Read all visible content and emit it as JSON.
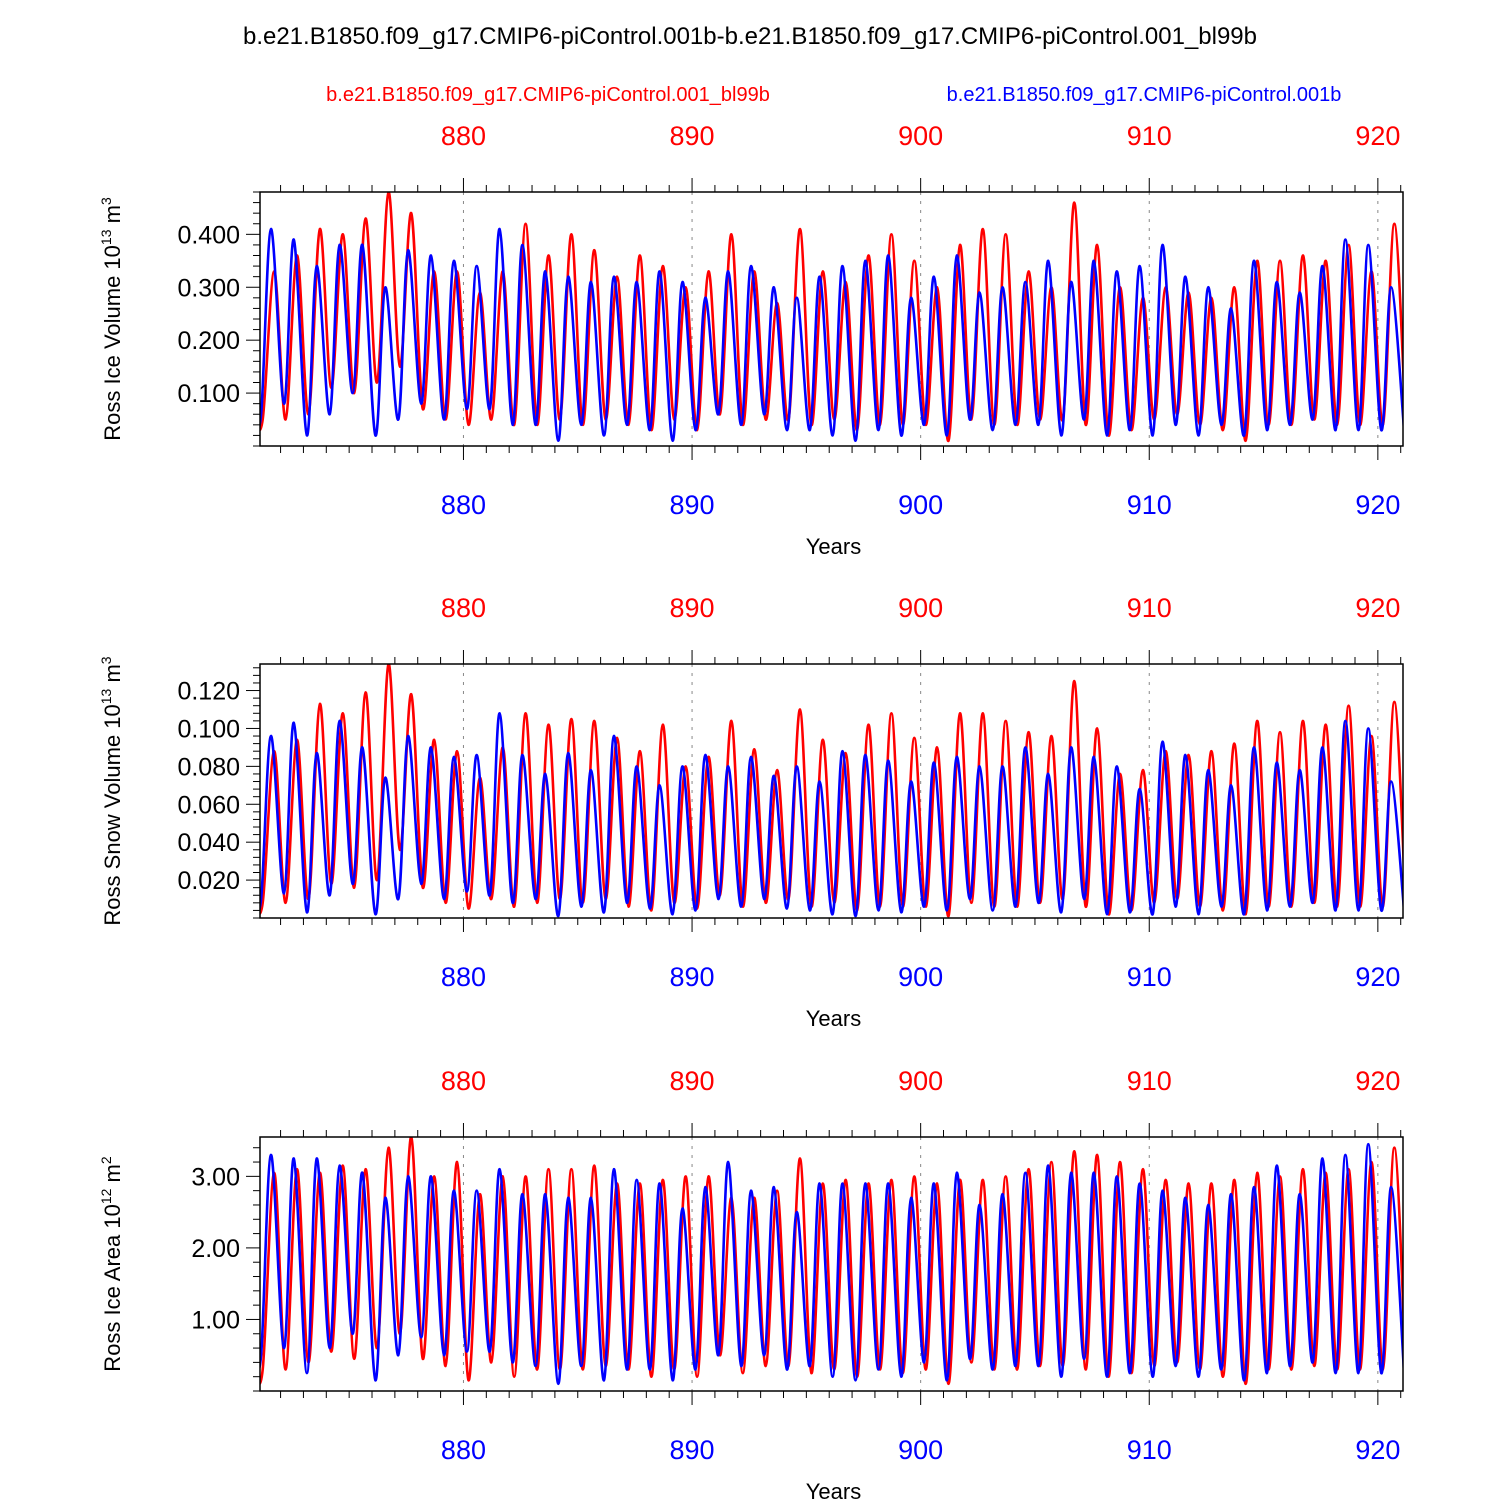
{
  "title": "b.e21.B1850.f09_g17.CMIP6-piControl.001b-b.e21.B1850.f09_g17.CMIP6-piControl.001_bl99b",
  "legend": {
    "red": "b.e21.B1850.f09_g17.CMIP6-piControl.001_bl99b",
    "blue": "b.e21.B1850.f09_g17.CMIP6-piControl.001b"
  },
  "colors": {
    "series_a": "#ff0000",
    "series_b": "#0000ff",
    "axis": "#000000",
    "grid": "#888888"
  },
  "chart_data": [
    {
      "type": "line",
      "title": "",
      "ylabel_main": "Ross Ice Volume 10",
      "ylabel_exp": "13",
      "ylabel_unit": " m",
      "ylabel_unit_exp": "3",
      "xlabel": "Years",
      "xlim": [
        871.1,
        921.1
      ],
      "ylim": [
        0.0,
        0.48
      ],
      "yticks": [
        0.1,
        0.2,
        0.3,
        0.4
      ],
      "ytick_labels": [
        "0.100",
        "0.200",
        "0.300",
        "0.400"
      ],
      "xticks": [
        880,
        890,
        900,
        910,
        920
      ],
      "xtick_labels": [
        "880",
        "890",
        "900",
        "910",
        "920"
      ],
      "grid_x": true,
      "series": [
        {
          "name": "b.e21.B1850.f09_g17.CMIP6-piControl.001_bl99b",
          "color": "#ff0000",
          "max": [
            0.33,
            0.36,
            0.41,
            0.4,
            0.43,
            0.48,
            0.44,
            0.33,
            0.33,
            0.29,
            0.33,
            0.42,
            0.36,
            0.4,
            0.37,
            0.32,
            0.36,
            0.34,
            0.3,
            0.33,
            0.4,
            0.33,
            0.27,
            0.41,
            0.33,
            0.31,
            0.36,
            0.4,
            0.35,
            0.3,
            0.38,
            0.41,
            0.4,
            0.33,
            0.3,
            0.46,
            0.38,
            0.3,
            0.28,
            0.3,
            0.29,
            0.28,
            0.3,
            0.35,
            0.35,
            0.36,
            0.35,
            0.38,
            0.33,
            0.42
          ],
          "min": [
            0.05,
            0.05,
            0.06,
            0.11,
            0.1,
            0.12,
            0.15,
            0.07,
            0.05,
            0.04,
            0.05,
            0.04,
            0.04,
            0.05,
            0.04,
            0.05,
            0.04,
            0.03,
            0.05,
            0.03,
            0.06,
            0.04,
            0.05,
            0.05,
            0.04,
            0.05,
            0.03,
            0.04,
            0.04,
            0.04,
            0.01,
            0.05,
            0.04,
            0.04,
            0.05,
            0.05,
            0.04,
            0.02,
            0.03,
            0.05,
            0.06,
            0.04,
            0.03,
            0.01,
            0.04,
            0.04,
            0.05,
            0.04,
            0.04,
            0.04
          ]
        },
        {
          "name": "b.e21.B1850.f09_g17.CMIP6-piControl.001b",
          "color": "#0000ff",
          "max": [
            0.41,
            0.39,
            0.34,
            0.38,
            0.38,
            0.3,
            0.37,
            0.36,
            0.35,
            0.34,
            0.41,
            0.38,
            0.33,
            0.32,
            0.31,
            0.32,
            0.31,
            0.33,
            0.31,
            0.28,
            0.33,
            0.34,
            0.3,
            0.28,
            0.32,
            0.34,
            0.35,
            0.36,
            0.28,
            0.32,
            0.36,
            0.29,
            0.3,
            0.31,
            0.35,
            0.31,
            0.35,
            0.33,
            0.34,
            0.38,
            0.32,
            0.3,
            0.26,
            0.35,
            0.31,
            0.29,
            0.34,
            0.39,
            0.38,
            0.3
          ],
          "min": [
            0.06,
            0.08,
            0.02,
            0.06,
            0.1,
            0.02,
            0.05,
            0.08,
            0.05,
            0.07,
            0.07,
            0.04,
            0.04,
            0.01,
            0.04,
            0.02,
            0.04,
            0.03,
            0.01,
            0.03,
            0.06,
            0.04,
            0.06,
            0.03,
            0.03,
            0.02,
            0.01,
            0.03,
            0.02,
            0.04,
            0.02,
            0.05,
            0.03,
            0.04,
            0.04,
            0.02,
            0.05,
            0.02,
            0.03,
            0.02,
            0.04,
            0.02,
            0.04,
            0.02,
            0.03,
            0.04,
            0.05,
            0.03,
            0.03,
            0.03
          ]
        }
      ]
    },
    {
      "type": "line",
      "title": "",
      "ylabel_main": "Ross Snow Volume 10",
      "ylabel_exp": "13",
      "ylabel_unit": " m",
      "ylabel_unit_exp": "3",
      "xlabel": "Years",
      "xlim": [
        871.1,
        921.1
      ],
      "ylim": [
        0.0,
        0.134
      ],
      "yticks": [
        0.02,
        0.04,
        0.06,
        0.08,
        0.1,
        0.12
      ],
      "ytick_labels": [
        "0.020",
        "0.040",
        "0.060",
        "0.080",
        "0.100",
        "0.120"
      ],
      "xticks": [
        880,
        890,
        900,
        910,
        920
      ],
      "xtick_labels": [
        "880",
        "890",
        "900",
        "910",
        "920"
      ],
      "grid_x": true,
      "series": [
        {
          "name": "b.e21.B1850.f09_g17.CMIP6-piControl.001_bl99b",
          "color": "#ff0000",
          "max": [
            0.088,
            0.094,
            0.113,
            0.108,
            0.119,
            0.134,
            0.118,
            0.094,
            0.088,
            0.074,
            0.09,
            0.108,
            0.102,
            0.105,
            0.104,
            0.095,
            0.088,
            0.102,
            0.08,
            0.085,
            0.104,
            0.089,
            0.078,
            0.11,
            0.094,
            0.087,
            0.102,
            0.108,
            0.095,
            0.09,
            0.108,
            0.108,
            0.104,
            0.098,
            0.096,
            0.125,
            0.1,
            0.076,
            0.078,
            0.088,
            0.086,
            0.088,
            0.092,
            0.104,
            0.098,
            0.104,
            0.102,
            0.112,
            0.096,
            0.114
          ],
          "min": [
            0.008,
            0.008,
            0.01,
            0.018,
            0.016,
            0.02,
            0.036,
            0.016,
            0.008,
            0.005,
            0.01,
            0.006,
            0.008,
            0.01,
            0.008,
            0.01,
            0.006,
            0.004,
            0.008,
            0.005,
            0.012,
            0.006,
            0.008,
            0.01,
            0.006,
            0.008,
            0.004,
            0.006,
            0.006,
            0.006,
            0.001,
            0.008,
            0.006,
            0.006,
            0.008,
            0.01,
            0.006,
            0.002,
            0.004,
            0.008,
            0.01,
            0.006,
            0.004,
            0.002,
            0.006,
            0.006,
            0.008,
            0.006,
            0.006,
            0.006
          ]
        },
        {
          "name": "b.e21.B1850.f09_g17.CMIP6-piControl.001b",
          "color": "#0000ff",
          "max": [
            0.096,
            0.103,
            0.087,
            0.104,
            0.09,
            0.074,
            0.096,
            0.09,
            0.085,
            0.086,
            0.108,
            0.086,
            0.076,
            0.087,
            0.078,
            0.096,
            0.08,
            0.07,
            0.08,
            0.086,
            0.08,
            0.085,
            0.075,
            0.08,
            0.072,
            0.088,
            0.086,
            0.083,
            0.072,
            0.082,
            0.085,
            0.08,
            0.08,
            0.09,
            0.076,
            0.09,
            0.085,
            0.08,
            0.068,
            0.093,
            0.086,
            0.078,
            0.07,
            0.09,
            0.082,
            0.078,
            0.09,
            0.104,
            0.1,
            0.072
          ],
          "min": [
            0.01,
            0.013,
            0.003,
            0.012,
            0.018,
            0.002,
            0.01,
            0.018,
            0.01,
            0.014,
            0.012,
            0.008,
            0.01,
            0.001,
            0.006,
            0.003,
            0.008,
            0.005,
            0.002,
            0.004,
            0.01,
            0.006,
            0.01,
            0.005,
            0.004,
            0.002,
            0.001,
            0.004,
            0.003,
            0.006,
            0.004,
            0.01,
            0.004,
            0.006,
            0.008,
            0.003,
            0.01,
            0.002,
            0.003,
            0.002,
            0.006,
            0.002,
            0.006,
            0.002,
            0.004,
            0.006,
            0.008,
            0.004,
            0.004,
            0.004
          ]
        }
      ]
    },
    {
      "type": "line",
      "title": "",
      "ylabel_main": "Ross Ice Area 10",
      "ylabel_exp": "12",
      "ylabel_unit": " m",
      "ylabel_unit_exp": "2",
      "xlabel": "Years",
      "xlim": [
        871.1,
        921.1
      ],
      "ylim": [
        0.0,
        3.55
      ],
      "yticks": [
        1.0,
        2.0,
        3.0
      ],
      "ytick_labels": [
        "1.00",
        "2.00",
        "3.00"
      ],
      "xticks": [
        880,
        890,
        900,
        910,
        920
      ],
      "xtick_labels": [
        "880",
        "890",
        "900",
        "910",
        "920"
      ],
      "grid_x": true,
      "series": [
        {
          "name": "b.e21.B1850.f09_g17.CMIP6-piControl.001_bl99b",
          "color": "#ff0000",
          "max": [
            3.05,
            3.1,
            3.05,
            3.15,
            3.1,
            3.4,
            3.55,
            3.0,
            3.2,
            2.75,
            3.0,
            3.0,
            3.1,
            3.1,
            3.15,
            2.9,
            2.9,
            2.95,
            3.0,
            3.0,
            2.7,
            2.7,
            2.8,
            3.25,
            2.9,
            2.95,
            2.9,
            2.95,
            3.0,
            2.9,
            2.95,
            2.95,
            3.0,
            3.1,
            3.2,
            3.35,
            3.3,
            3.2,
            3.1,
            2.95,
            2.9,
            2.9,
            2.95,
            3.05,
            3.0,
            3.1,
            3.05,
            3.1,
            3.2,
            3.4
          ],
          "min": [
            0.3,
            0.3,
            0.4,
            0.55,
            0.45,
            0.6,
            0.8,
            0.45,
            0.35,
            0.15,
            0.4,
            0.2,
            0.3,
            0.3,
            0.3,
            0.35,
            0.3,
            0.2,
            0.3,
            0.2,
            0.5,
            0.25,
            0.35,
            0.35,
            0.25,
            0.3,
            0.2,
            0.3,
            0.25,
            0.3,
            0.1,
            0.4,
            0.3,
            0.3,
            0.35,
            0.35,
            0.3,
            0.2,
            0.25,
            0.35,
            0.4,
            0.3,
            0.2,
            0.1,
            0.3,
            0.3,
            0.35,
            0.3,
            0.3,
            0.3
          ]
        },
        {
          "name": "b.e21.B1850.f09_g17.CMIP6-piControl.001b",
          "color": "#0000ff",
          "max": [
            3.3,
            3.25,
            3.25,
            3.15,
            3.05,
            2.7,
            3.0,
            3.0,
            2.8,
            2.8,
            3.1,
            2.75,
            2.75,
            2.7,
            2.7,
            3.1,
            2.95,
            2.9,
            2.55,
            2.85,
            3.2,
            2.8,
            2.85,
            2.5,
            2.9,
            2.9,
            2.9,
            2.9,
            2.7,
            2.9,
            3.05,
            2.6,
            2.75,
            3.05,
            3.15,
            3.05,
            3.05,
            3.0,
            2.9,
            2.8,
            2.7,
            2.6,
            2.75,
            2.85,
            3.15,
            2.75,
            3.25,
            3.3,
            3.45,
            2.85
          ],
          "min": [
            0.5,
            0.6,
            0.25,
            0.6,
            0.8,
            0.15,
            0.5,
            0.75,
            0.5,
            0.55,
            0.55,
            0.4,
            0.35,
            0.1,
            0.35,
            0.15,
            0.3,
            0.3,
            0.15,
            0.3,
            0.5,
            0.35,
            0.5,
            0.3,
            0.35,
            0.2,
            0.15,
            0.3,
            0.2,
            0.4,
            0.15,
            0.45,
            0.3,
            0.35,
            0.35,
            0.2,
            0.45,
            0.2,
            0.25,
            0.2,
            0.35,
            0.2,
            0.3,
            0.15,
            0.25,
            0.35,
            0.4,
            0.25,
            0.25,
            0.25
          ]
        }
      ]
    }
  ]
}
